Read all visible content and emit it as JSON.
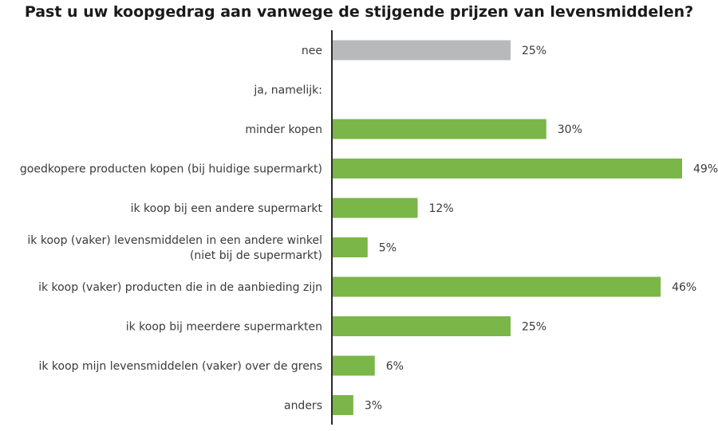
{
  "colors": {
    "accent": "#7ab648",
    "neutral": "#b8b9bb",
    "axis": "#2a2a2a",
    "text": "#3a3a3a"
  },
  "chart_data": {
    "type": "bar",
    "orientation": "horizontal",
    "title": "Past u uw koopgedrag aan vanwege de stijgende prijzen van levensmiddelen?",
    "xlabel": "",
    "ylabel": "",
    "xlim": [
      0,
      50
    ],
    "grid": false,
    "legend": "none",
    "categories": [
      [
        "nee"
      ],
      [
        "ja, namelijk:"
      ],
      [
        "minder kopen"
      ],
      [
        "goedkopere producten kopen (bij huidige supermarkt)"
      ],
      [
        "ik koop bij een andere supermarkt"
      ],
      [
        "ik koop (vaker) levensmiddelen in een andere winkel",
        "(niet bij de supermarkt)"
      ],
      [
        "ik koop (vaker) producten die in de aanbieding zijn"
      ],
      [
        "ik koop bij meerdere supermarkten"
      ],
      [
        "ik koop mijn levensmiddelen (vaker) over de grens"
      ],
      [
        "anders"
      ]
    ],
    "values": [
      25,
      null,
      30,
      49,
      12,
      5,
      46,
      25,
      6,
      3
    ],
    "value_labels": [
      "25%",
      "",
      "30%",
      "49%",
      "12%",
      "5%",
      "46%",
      "25%",
      "6%",
      "3%"
    ],
    "bar_colors": [
      "#b8b9bb",
      null,
      "#7ab648",
      "#7ab648",
      "#7ab648",
      "#7ab648",
      "#7ab648",
      "#7ab648",
      "#7ab648",
      "#7ab648"
    ]
  }
}
